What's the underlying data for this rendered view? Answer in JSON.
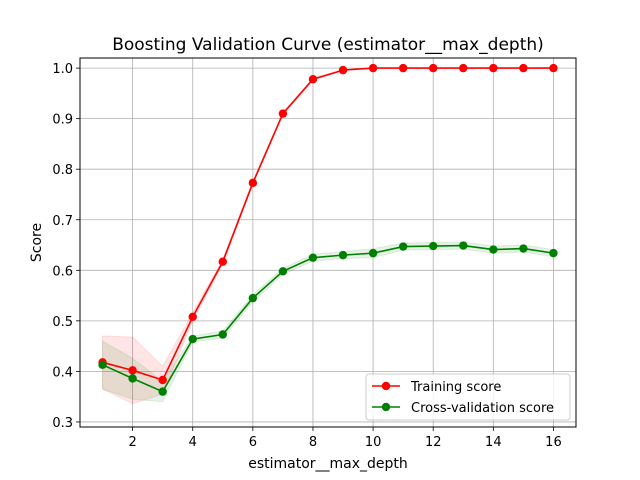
{
  "chart_data": {
    "type": "line",
    "title": "Boosting Validation Curve (estimator__max_depth)",
    "xlabel": "estimator__max_depth",
    "ylabel": "Score",
    "xlim": [
      0.25,
      16.75
    ],
    "ylim": [
      0.29,
      1.02
    ],
    "xticks": [
      2,
      4,
      6,
      8,
      10,
      12,
      14,
      16
    ],
    "xtick_labels": [
      "2",
      "4",
      "6",
      "8",
      "10",
      "12",
      "14",
      "16"
    ],
    "yticks": [
      0.3,
      0.4,
      0.5,
      0.6,
      0.7,
      0.8,
      0.9,
      1.0
    ],
    "ytick_labels": [
      "0.3",
      "0.4",
      "0.5",
      "0.6",
      "0.7",
      "0.8",
      "0.9",
      "1.0"
    ],
    "grid": true,
    "legend_position": "lower-right",
    "x": [
      1,
      2,
      3,
      4,
      5,
      6,
      7,
      8,
      9,
      10,
      11,
      12,
      13,
      14,
      15,
      16
    ],
    "series": [
      {
        "name": "Training score",
        "color": "#ff0000",
        "values": [
          0.418,
          0.402,
          0.383,
          0.508,
          0.617,
          0.773,
          0.91,
          0.978,
          0.996,
          1.0,
          1.0,
          1.0,
          1.0,
          1.0,
          1.0,
          1.0
        ],
        "band_lower": [
          0.365,
          0.336,
          0.355,
          0.5,
          0.612,
          0.77,
          0.908,
          0.976,
          0.995,
          1.0,
          1.0,
          1.0,
          1.0,
          1.0,
          1.0,
          1.0
        ],
        "band_upper": [
          0.47,
          0.468,
          0.41,
          0.516,
          0.622,
          0.776,
          0.912,
          0.98,
          0.997,
          1.0,
          1.0,
          1.0,
          1.0,
          1.0,
          1.0,
          1.0
        ]
      },
      {
        "name": "Cross-validation score",
        "color": "#008000",
        "values": [
          0.413,
          0.386,
          0.36,
          0.464,
          0.473,
          0.545,
          0.598,
          0.625,
          0.63,
          0.634,
          0.647,
          0.648,
          0.649,
          0.641,
          0.643,
          0.634
        ],
        "band_lower": [
          0.365,
          0.345,
          0.34,
          0.458,
          0.466,
          0.538,
          0.592,
          0.618,
          0.623,
          0.625,
          0.64,
          0.641,
          0.642,
          0.634,
          0.636,
          0.627
        ],
        "band_upper": [
          0.46,
          0.426,
          0.38,
          0.47,
          0.48,
          0.552,
          0.604,
          0.632,
          0.637,
          0.643,
          0.654,
          0.655,
          0.656,
          0.648,
          0.65,
          0.641
        ]
      }
    ]
  }
}
